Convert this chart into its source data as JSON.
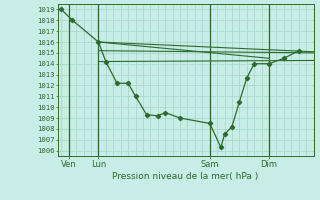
{
  "xlabel": "Pression niveau de la mer( hPa )",
  "ylim": [
    1005.5,
    1019.5
  ],
  "xlim": [
    -0.5,
    34
  ],
  "bg_color": "#c8ece6",
  "grid_color": "#a8d8cc",
  "line_color": "#2d6b2d",
  "day_labels": [
    "Ven",
    "Lun",
    "Sam",
    "Dim"
  ],
  "day_positions": [
    1,
    5,
    20,
    28
  ],
  "yticks": [
    1006,
    1007,
    1008,
    1009,
    1010,
    1011,
    1012,
    1013,
    1014,
    1015,
    1016,
    1017,
    1018,
    1019
  ],
  "vline_positions": [
    1,
    5,
    20,
    28
  ],
  "detail_x": [
    0,
    1.5,
    5,
    6,
    7.5,
    9,
    10,
    11.5,
    13,
    14,
    16,
    20,
    21.5,
    22,
    23,
    24,
    25,
    26,
    28,
    30,
    32
  ],
  "detail_y": [
    1019,
    1018,
    1016,
    1014.2,
    1012.2,
    1012.2,
    1011,
    1009.3,
    1009.2,
    1009.5,
    1009.0,
    1008.5,
    1006.3,
    1007.5,
    1008.2,
    1010.5,
    1012.7,
    1014,
    1014,
    1014.5,
    1015.2
  ],
  "band_lines": [
    {
      "x": [
        5,
        34
      ],
      "y": [
        1016.0,
        1015.1
      ]
    },
    {
      "x": [
        5,
        34
      ],
      "y": [
        1015.2,
        1015.0
      ]
    },
    {
      "x": [
        5,
        34
      ],
      "y": [
        1014.2,
        1014.3
      ]
    },
    {
      "x": [
        5,
        28
      ],
      "y": [
        1016.0,
        1014.5
      ]
    }
  ]
}
